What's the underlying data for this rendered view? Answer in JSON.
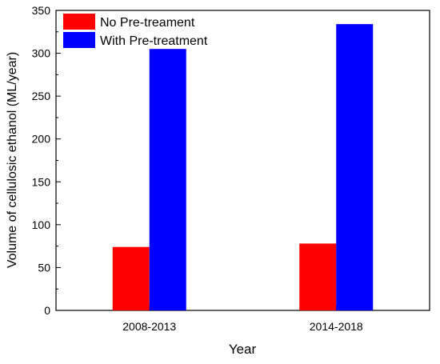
{
  "chart_data": {
    "type": "bar",
    "categories": [
      "2008-2013",
      "2014-2018"
    ],
    "series": [
      {
        "name": "No Pre-treament",
        "values": [
          74,
          78
        ],
        "color": "#ff0000"
      },
      {
        "name": "With Pre-treatment",
        "values": [
          305,
          334
        ],
        "color": "#0000ff"
      }
    ],
    "xlabel": "Year",
    "ylabel": "Volume of cellulosic ethanol (ML/year)",
    "ylim": [
      0,
      350
    ],
    "yticks": [
      0,
      50,
      100,
      150,
      200,
      250,
      300,
      350
    ],
    "grid": false,
    "legend_position": "top-left"
  }
}
